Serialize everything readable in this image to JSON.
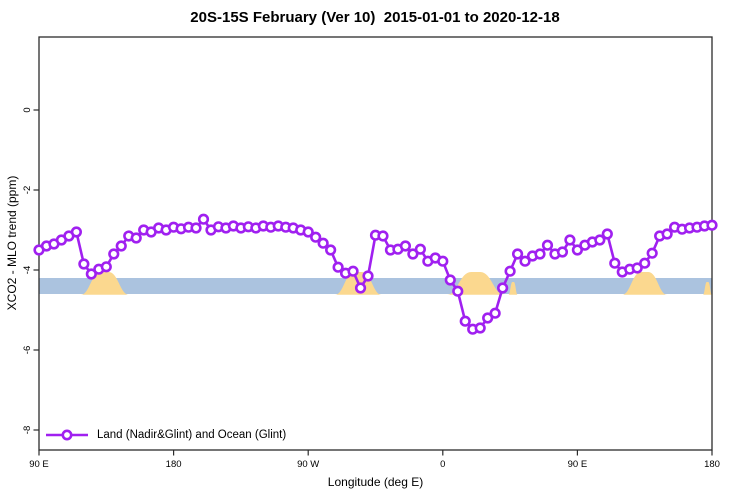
{
  "header": {
    "title": "20S-15S February (Ver 10)  2015-01-01 to 2020-12-18"
  },
  "legend": {
    "label": "Land (Nadir&Glint) and Ocean (Glint)",
    "marker": "open-circle-on-line",
    "position": "bottom-left"
  },
  "colors": {
    "series": "#A020F0",
    "ocean_band": "#ABC3DF",
    "land_band": "#FBD88F",
    "axis": "#2b2b2b",
    "background": "#ffffff"
  },
  "chart_data": {
    "type": "line",
    "title": "20S-15S February (Ver 10)  2015-01-01 to 2020-12-18",
    "xlabel": "Longitude (deg E)",
    "ylabel": "XCO2 - MLO trend (ppm)",
    "xlim": [
      90,
      540
    ],
    "ylim": [
      -8.5,
      1.85
    ],
    "grid": false,
    "x_ticks": [
      {
        "lon": 90,
        "label": "90 E"
      },
      {
        "lon": 180,
        "label": "180"
      },
      {
        "lon": 270,
        "label": "90 W"
      },
      {
        "lon": 360,
        "label": "0"
      },
      {
        "lon": 450,
        "label": "90 E"
      },
      {
        "lon": 540,
        "label": "180"
      }
    ],
    "y_ticks": [
      {
        "value": 0,
        "label": "0"
      },
      {
        "value": -2,
        "label": "-2"
      },
      {
        "value": -4,
        "label": "-4"
      },
      {
        "value": -6,
        "label": "-6"
      },
      {
        "value": -8,
        "label": "-8"
      }
    ],
    "bands": {
      "ocean": {
        "y_from": -4.2,
        "y_to": -4.6,
        "color": "#ABC3DF",
        "x_from": 90,
        "x_to": 540
      },
      "land_color": "#FBD88F",
      "land_humps": [
        {
          "x_from": 118,
          "x_to": 150,
          "size": "large"
        },
        {
          "x_from": 288,
          "x_to": 319,
          "size": "large"
        },
        {
          "x_from": 363,
          "x_to": 401,
          "size": "large"
        },
        {
          "x_from": 404,
          "x_to": 410,
          "size": "small"
        },
        {
          "x_from": 480,
          "x_to": 510,
          "size": "large"
        },
        {
          "x_from": 534,
          "x_to": 540,
          "size": "small"
        }
      ]
    },
    "series": [
      {
        "name": "Land (Nadir&Glint) and Ocean (Glint)",
        "color": "#A020F0",
        "marker": "open-circle",
        "x": [
          90,
          95,
          100,
          105,
          110,
          115,
          120,
          125,
          130,
          135,
          140,
          145,
          150,
          155,
          160,
          165,
          170,
          175,
          180,
          185,
          190,
          195,
          200,
          205,
          210,
          215,
          220,
          225,
          230,
          235,
          240,
          245,
          250,
          255,
          260,
          265,
          270,
          275,
          280,
          285,
          290,
          295,
          300,
          305,
          310,
          315,
          320,
          325,
          330,
          335,
          340,
          345,
          350,
          355,
          360,
          365,
          370,
          375,
          380,
          385,
          390,
          395,
          400,
          405,
          410,
          415,
          420,
          425,
          430,
          435,
          440,
          445,
          450,
          455,
          460,
          465,
          470,
          475,
          480,
          485,
          490,
          495,
          500,
          505,
          510,
          515,
          520,
          525,
          530,
          535,
          540
        ],
        "y": [
          -3.5,
          -3.4,
          -3.35,
          -3.25,
          -3.15,
          -3.05,
          -3.85,
          -4.1,
          -3.98,
          -3.92,
          -3.6,
          -3.4,
          -3.15,
          -3.2,
          -3.0,
          -3.05,
          -2.95,
          -3.0,
          -2.93,
          -2.97,
          -2.93,
          -2.95,
          -2.73,
          -3.0,
          -2.92,
          -2.95,
          -2.9,
          -2.95,
          -2.92,
          -2.95,
          -2.9,
          -2.93,
          -2.9,
          -2.93,
          -2.95,
          -3.0,
          -3.05,
          -3.18,
          -3.33,
          -3.5,
          -3.93,
          -4.08,
          -4.03,
          -4.45,
          -4.15,
          -3.13,
          -3.15,
          -3.5,
          -3.48,
          -3.4,
          -3.6,
          -3.48,
          -3.78,
          -3.7,
          -3.78,
          -4.25,
          -4.53,
          -5.28,
          -5.48,
          -5.45,
          -5.2,
          -5.08,
          -4.45,
          -4.03,
          -3.6,
          -3.78,
          -3.65,
          -3.6,
          -3.38,
          -3.6,
          -3.55,
          -3.25,
          -3.5,
          -3.38,
          -3.3,
          -3.25,
          -3.1,
          -3.83,
          -4.05,
          -3.98,
          -3.95,
          -3.83,
          -3.58,
          -3.15,
          -3.1,
          -2.93,
          -2.98,
          -2.95,
          -2.93,
          -2.9,
          -2.88
        ]
      }
    ],
    "legend": {
      "entries": [
        {
          "label": "Land (Nadir&Glint) and Ocean (Glint)",
          "color": "#A020F0",
          "marker": "open-circle-on-line"
        }
      ],
      "position": "bottom-left"
    }
  }
}
